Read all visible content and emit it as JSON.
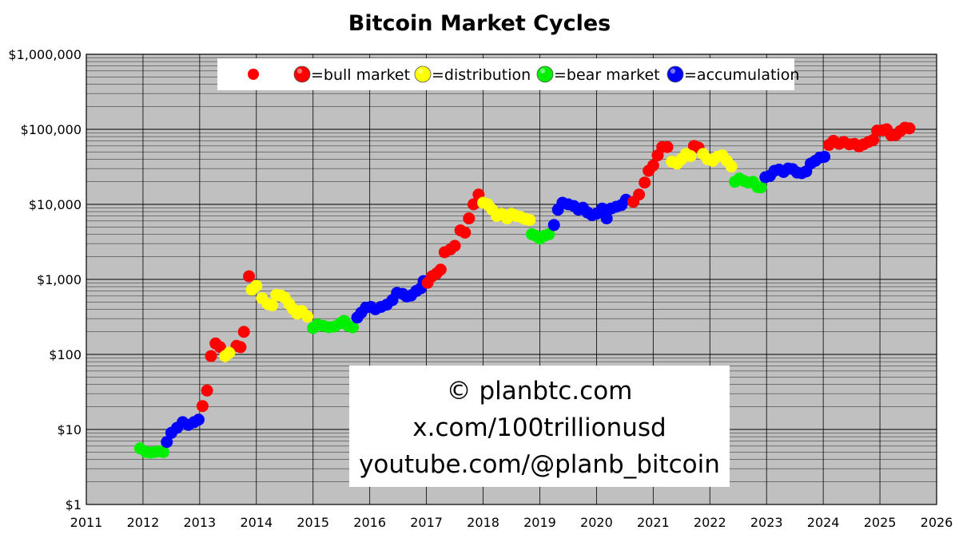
{
  "chart_data": {
    "type": "scatter",
    "title": "Bitcoin Market Cycles",
    "xlabel": "",
    "ylabel": "",
    "y_scale": "log",
    "xlim": [
      2011,
      2026
    ],
    "ylim": [
      1,
      1000000
    ],
    "grid": true,
    "x_ticks": [
      "2011",
      "2012",
      "2013",
      "2014",
      "2015",
      "2016",
      "2017",
      "2018",
      "2019",
      "2020",
      "2021",
      "2022",
      "2023",
      "2024",
      "2025",
      "2026"
    ],
    "y_ticks": [
      {
        "value": 1,
        "label": "$1"
      },
      {
        "value": 10,
        "label": "$10"
      },
      {
        "value": 100,
        "label": "$100"
      },
      {
        "value": 1000,
        "label": "$1,000"
      },
      {
        "value": 10000,
        "label": "$10,000"
      },
      {
        "value": 100000,
        "label": "$100,000"
      },
      {
        "value": 1000000,
        "label": "$1,000,000"
      }
    ],
    "legend": {
      "placement": "top",
      "entries": [
        {
          "label": "",
          "color": "#ff0000"
        },
        {
          "label": "=bull market",
          "color": "#ff0000"
        },
        {
          "label": "=distribution",
          "color": "#ffff00"
        },
        {
          "label": "=bear market",
          "color": "#00ee00"
        },
        {
          "label": "=accumulation",
          "color": "#0000ff"
        }
      ]
    },
    "annotations": [
      "© planbtc.com",
      "x.com/100trillionusd",
      "youtube.com/@planb_bitcoin"
    ],
    "colors": {
      "bull": "#ff0000",
      "distribution": "#ffff00",
      "bear": "#00ee00",
      "accumulation": "#0000ff",
      "plot_background": "#c0c0c0"
    },
    "series": [
      {
        "phase": "bear",
        "points": [
          [
            2011.95,
            5.6
          ],
          [
            2012.05,
            5
          ],
          [
            2012.12,
            4.9
          ],
          [
            2012.2,
            5
          ],
          [
            2012.3,
            5.1
          ],
          [
            2012.36,
            5
          ]
        ]
      },
      {
        "phase": "accumulation",
        "points": [
          [
            2012.42,
            6.8
          ],
          [
            2012.5,
            9
          ],
          [
            2012.6,
            10.5
          ],
          [
            2012.7,
            12.5
          ],
          [
            2012.8,
            11.5
          ],
          [
            2012.9,
            12.5
          ],
          [
            2012.98,
            13.5
          ]
        ]
      },
      {
        "phase": "bull",
        "points": [
          [
            2013.05,
            20.5
          ],
          [
            2013.13,
            33
          ],
          [
            2013.2,
            95
          ],
          [
            2013.28,
            140
          ],
          [
            2013.36,
            125
          ],
          [
            2013.65,
            130
          ],
          [
            2013.72,
            125
          ],
          [
            2013.78,
            200
          ],
          [
            2013.87,
            1100
          ]
        ]
      },
      {
        "phase": "distribution",
        "points": [
          [
            2013.45,
            95
          ],
          [
            2013.52,
            105
          ],
          [
            2013.92,
            730
          ],
          [
            2014.0,
            820
          ],
          [
            2014.1,
            560
          ],
          [
            2014.2,
            470
          ],
          [
            2014.28,
            450
          ],
          [
            2014.35,
            620
          ],
          [
            2014.43,
            610
          ],
          [
            2014.5,
            570
          ],
          [
            2014.58,
            470
          ],
          [
            2014.65,
            400
          ],
          [
            2014.72,
            350
          ],
          [
            2014.8,
            380
          ],
          [
            2014.9,
            320
          ]
        ]
      },
      {
        "phase": "bear",
        "points": [
          [
            2015.0,
            225
          ],
          [
            2015.08,
            250
          ],
          [
            2015.18,
            240
          ],
          [
            2015.28,
            230
          ],
          [
            2015.38,
            235
          ],
          [
            2015.48,
            260
          ],
          [
            2015.55,
            280
          ],
          [
            2015.62,
            240
          ],
          [
            2015.7,
            230
          ]
        ]
      },
      {
        "phase": "accumulation",
        "points": [
          [
            2015.78,
            310
          ],
          [
            2015.85,
            360
          ],
          [
            2015.93,
            420
          ],
          [
            2016.02,
            430
          ],
          [
            2016.1,
            400
          ],
          [
            2016.2,
            430
          ],
          [
            2016.3,
            460
          ],
          [
            2016.4,
            530
          ],
          [
            2016.48,
            660
          ],
          [
            2016.58,
            640
          ],
          [
            2016.65,
            590
          ],
          [
            2016.73,
            610
          ],
          [
            2016.82,
            700
          ],
          [
            2016.9,
            760
          ],
          [
            2016.95,
            950
          ]
        ]
      },
      {
        "phase": "bull",
        "points": [
          [
            2017.02,
            900
          ],
          [
            2017.1,
            1100
          ],
          [
            2017.18,
            1200
          ],
          [
            2017.25,
            1350
          ],
          [
            2017.32,
            2300
          ],
          [
            2017.42,
            2500
          ],
          [
            2017.5,
            2800
          ],
          [
            2017.6,
            4500
          ],
          [
            2017.68,
            4200
          ],
          [
            2017.75,
            6500
          ],
          [
            2017.83,
            10000
          ],
          [
            2017.92,
            13500
          ]
        ]
      },
      {
        "phase": "distribution",
        "points": [
          [
            2018.0,
            10500
          ],
          [
            2018.08,
            10000
          ],
          [
            2018.16,
            8500
          ],
          [
            2018.24,
            7000
          ],
          [
            2018.32,
            7500
          ],
          [
            2018.42,
            6500
          ],
          [
            2018.5,
            7500
          ],
          [
            2018.58,
            7000
          ],
          [
            2018.66,
            6800
          ],
          [
            2018.74,
            6400
          ],
          [
            2018.82,
            6200
          ]
        ]
      },
      {
        "phase": "bear",
        "points": [
          [
            2018.86,
            4000
          ],
          [
            2018.93,
            3800
          ],
          [
            2019.0,
            3500
          ],
          [
            2019.08,
            3800
          ],
          [
            2019.16,
            4000
          ]
        ]
      },
      {
        "phase": "accumulation",
        "points": [
          [
            2019.25,
            5300
          ],
          [
            2019.32,
            8500
          ],
          [
            2019.4,
            10500
          ],
          [
            2019.5,
            10000
          ],
          [
            2019.6,
            9500
          ],
          [
            2019.68,
            8500
          ],
          [
            2019.76,
            9000
          ],
          [
            2019.84,
            7800
          ],
          [
            2019.92,
            7200
          ],
          [
            2020.0,
            7500
          ],
          [
            2020.1,
            8800
          ],
          [
            2020.18,
            6500
          ],
          [
            2020.26,
            8800
          ],
          [
            2020.35,
            9300
          ],
          [
            2020.44,
            9800
          ],
          [
            2020.52,
            11500
          ]
        ]
      },
      {
        "phase": "bull",
        "points": [
          [
            2020.65,
            10800
          ],
          [
            2020.75,
            13500
          ],
          [
            2020.85,
            19500
          ],
          [
            2020.92,
            28000
          ],
          [
            2021.0,
            33000
          ],
          [
            2021.08,
            45000
          ],
          [
            2021.16,
            58000
          ],
          [
            2021.25,
            58000
          ],
          [
            2021.72,
            60000
          ],
          [
            2021.8,
            57000
          ]
        ]
      },
      {
        "phase": "distribution",
        "points": [
          [
            2021.33,
            37000
          ],
          [
            2021.42,
            35000
          ],
          [
            2021.5,
            40000
          ],
          [
            2021.58,
            47000
          ],
          [
            2021.66,
            44000
          ],
          [
            2021.88,
            47000
          ],
          [
            2021.96,
            40000
          ],
          [
            2022.05,
            38000
          ],
          [
            2022.13,
            43000
          ],
          [
            2022.22,
            45000
          ],
          [
            2022.3,
            38000
          ],
          [
            2022.38,
            32000
          ]
        ]
      },
      {
        "phase": "bear",
        "points": [
          [
            2022.44,
            20000
          ],
          [
            2022.52,
            22000
          ],
          [
            2022.6,
            20500
          ],
          [
            2022.68,
            19500
          ],
          [
            2022.76,
            20000
          ],
          [
            2022.84,
            17000
          ],
          [
            2022.9,
            16800
          ]
        ]
      },
      {
        "phase": "accumulation",
        "points": [
          [
            2022.98,
            23000
          ],
          [
            2023.06,
            24000
          ],
          [
            2023.14,
            28000
          ],
          [
            2023.22,
            29000
          ],
          [
            2023.3,
            27000
          ],
          [
            2023.38,
            30000
          ],
          [
            2023.46,
            29500
          ],
          [
            2023.54,
            26500
          ],
          [
            2023.62,
            26000
          ],
          [
            2023.7,
            27500
          ],
          [
            2023.78,
            35000
          ],
          [
            2023.86,
            38000
          ],
          [
            2023.94,
            42000
          ],
          [
            2024.02,
            43000
          ]
        ]
      },
      {
        "phase": "bull",
        "points": [
          [
            2024.1,
            62000
          ],
          [
            2024.18,
            70000
          ],
          [
            2024.28,
            64000
          ],
          [
            2024.36,
            68000
          ],
          [
            2024.46,
            63000
          ],
          [
            2024.55,
            64000
          ],
          [
            2024.63,
            59000
          ],
          [
            2024.71,
            63000
          ],
          [
            2024.8,
            68000
          ],
          [
            2024.88,
            72000
          ],
          [
            2024.95,
            96000
          ],
          [
            2025.05,
            97000
          ],
          [
            2025.12,
            100000
          ],
          [
            2025.2,
            83000
          ],
          [
            2025.28,
            84000
          ],
          [
            2025.36,
            95000
          ],
          [
            2025.44,
            105000
          ],
          [
            2025.52,
            103000
          ]
        ]
      }
    ]
  }
}
